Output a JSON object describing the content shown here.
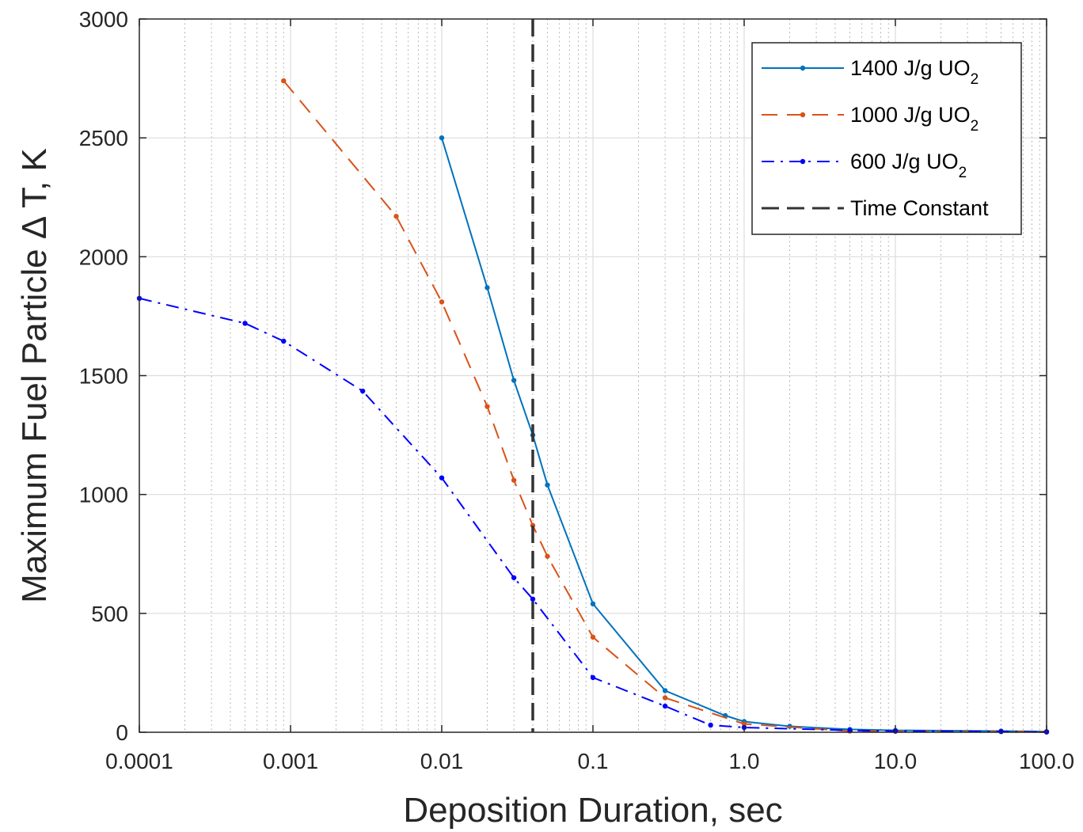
{
  "chart_data": {
    "type": "line",
    "xscale": "log",
    "xlim": [
      0.0001,
      100.0
    ],
    "ylim": [
      0,
      3000
    ],
    "xlabel": "Deposition Duration, sec",
    "ylabel": "Maximum Fuel Particle Δ T, K",
    "x_ticks": [
      0.0001,
      0.001,
      0.01,
      0.1,
      1.0,
      10.0,
      100.0
    ],
    "x_tick_labels": [
      "0.0001",
      "0.001",
      "0.01",
      "0.1",
      "1.0",
      "10.0",
      "100.0"
    ],
    "y_ticks": [
      0,
      500,
      1000,
      1500,
      2000,
      2500,
      3000
    ],
    "y_tick_labels": [
      "0",
      "500",
      "1000",
      "1500",
      "2000",
      "2500",
      "3000"
    ],
    "grid": true,
    "legend_position": "top-right",
    "series": [
      {
        "name": "1400 J/g UO",
        "name_subscript": "2",
        "color": "#0072BD",
        "line_style": "solid",
        "x": [
          0.01,
          0.02,
          0.03,
          0.04,
          0.05,
          0.1,
          0.3,
          0.75,
          1.0,
          2.0,
          5.0,
          10.0,
          50.0,
          100.0
        ],
        "y": [
          2500,
          1870,
          1480,
          1250,
          1040,
          540,
          175,
          70,
          45,
          25,
          12,
          8,
          5,
          3
        ]
      },
      {
        "name": "1000 J/g UO",
        "name_subscript": "2",
        "color": "#D95319",
        "line_style": "dashed",
        "x": [
          0.0009,
          0.005,
          0.01,
          0.02,
          0.03,
          0.04,
          0.05,
          0.1,
          0.3,
          1.0,
          5.0,
          10.0,
          50.0,
          100.0
        ],
        "y": [
          2740,
          2170,
          1810,
          1370,
          1060,
          870,
          740,
          400,
          145,
          35,
          5,
          4,
          3,
          2
        ]
      },
      {
        "name": "600 J/g UO",
        "name_subscript": "2",
        "color": "#0000FF",
        "line_style": "dashdot",
        "x": [
          0.0001,
          0.0005,
          0.0009,
          0.003,
          0.01,
          0.03,
          0.04,
          0.1,
          0.3,
          0.6,
          1.0,
          5.0,
          10.0,
          50.0,
          100.0
        ],
        "y": [
          1825,
          1720,
          1645,
          1435,
          1070,
          650,
          560,
          230,
          110,
          30,
          20,
          8,
          5,
          3,
          1
        ]
      },
      {
        "name": "Time Constant",
        "color": "#333333",
        "line_style": "dashed",
        "type": "vline",
        "x": 0.04
      }
    ]
  }
}
